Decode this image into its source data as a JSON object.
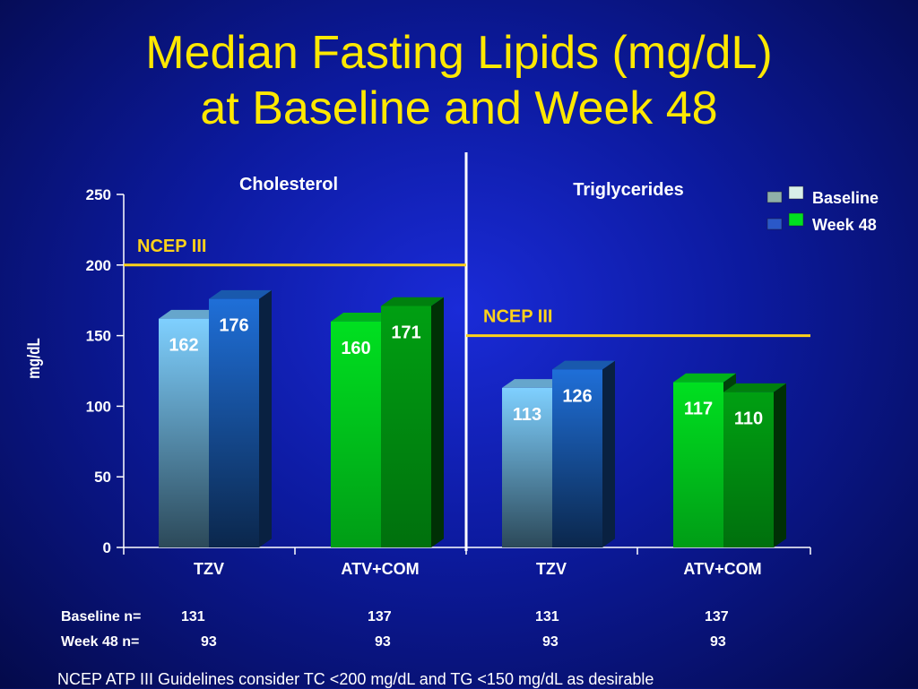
{
  "slide": {
    "title_line1": "Median Fasting Lipids (mg/dL)",
    "title_line2": "at Baseline and Week 48",
    "footnote": "NCEP ATP III Guidelines consider TC <200 mg/dL and TG <150 mg/dL as desirable"
  },
  "chart_data": {
    "type": "bar",
    "ylabel": "mg/dL",
    "ylim": [
      0,
      250
    ],
    "yticks": [
      "0",
      "50",
      "100",
      "150",
      "200",
      "250"
    ],
    "panels": [
      {
        "label": "Cholesterol",
        "categories": [
          "TZV",
          "ATV+COM"
        ],
        "reference_line": {
          "label": "NCEP III",
          "value": 200
        },
        "series": [
          {
            "name": "Baseline",
            "values": [
              162,
              160
            ]
          },
          {
            "name": "Week 48",
            "values": [
              176,
              171
            ]
          }
        ]
      },
      {
        "label": "Triglycerides",
        "categories": [
          "TZV",
          "ATV+COM"
        ],
        "reference_line": {
          "label": "NCEP III",
          "value": 150
        },
        "series": [
          {
            "name": "Baseline",
            "values": [
              113,
              117
            ]
          },
          {
            "name": "Week 48",
            "values": [
              126,
              110
            ]
          }
        ]
      }
    ],
    "legend": {
      "position": "top-right",
      "entries": [
        "Baseline",
        "Week 48"
      ]
    },
    "colors": {
      "tzv_baseline": "#7fd0ff",
      "tzv_week48": "#1f6fd8",
      "atv_baseline": "#00e020",
      "atv_week48": "#00a012",
      "reference_line": "#ffd21a",
      "axis": "#ffffff"
    }
  },
  "counts": {
    "baseline_label": "Baseline   n=",
    "week48_label": "Week 48   n=",
    "baseline_n": [
      "131",
      "137",
      "131",
      "137"
    ],
    "week48_n": [
      "93",
      "93",
      "93",
      "93"
    ]
  }
}
